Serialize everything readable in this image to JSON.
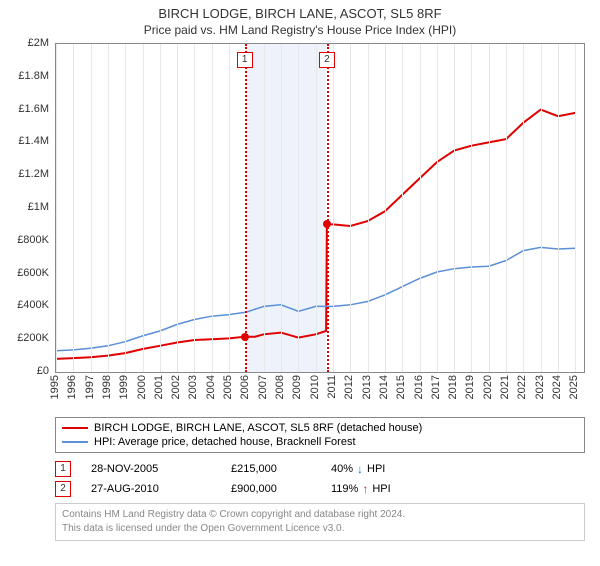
{
  "title": "BIRCH LODGE, BIRCH LANE, ASCOT, SL5 8RF",
  "subtitle": "Price paid vs. HM Land Registry's House Price Index (HPI)",
  "chart": {
    "type": "line",
    "x_start": 1995,
    "x_end": 2025.5,
    "xticks": [
      1995,
      1996,
      1997,
      1998,
      1999,
      2000,
      2001,
      2002,
      2003,
      2004,
      2005,
      2006,
      2007,
      2008,
      2009,
      2010,
      2011,
      2012,
      2013,
      2014,
      2015,
      2016,
      2017,
      2018,
      2019,
      2020,
      2021,
      2022,
      2023,
      2024,
      2025
    ],
    "ylim": [
      0,
      2000000
    ],
    "yticks": [
      0,
      200000,
      400000,
      600000,
      800000,
      1000000,
      1200000,
      1400000,
      1600000,
      1800000,
      2000000
    ],
    "ytick_labels": [
      "£0",
      "£200K",
      "£400K",
      "£600K",
      "£800K",
      "£1M",
      "£1.2M",
      "£1.4M",
      "£1.6M",
      "£1.8M",
      "£2M"
    ],
    "grid_color": "#e8e8e8",
    "border_color": "#888888",
    "background_color": "#ffffff",
    "shade": {
      "start": 2006,
      "end": 2010.6,
      "color": "#eef2fa"
    },
    "series": [
      {
        "name": "property",
        "color": "#e00000",
        "width": 2,
        "points": [
          [
            1995,
            80000
          ],
          [
            1996,
            85000
          ],
          [
            1997,
            90000
          ],
          [
            1998,
            100000
          ],
          [
            1999,
            115000
          ],
          [
            2000,
            140000
          ],
          [
            2001,
            160000
          ],
          [
            2002,
            180000
          ],
          [
            2003,
            195000
          ],
          [
            2004,
            200000
          ],
          [
            2005,
            205000
          ],
          [
            2005.9,
            215000
          ],
          [
            2006.5,
            215000
          ],
          [
            2007,
            230000
          ],
          [
            2008,
            240000
          ],
          [
            2009,
            210000
          ],
          [
            2010,
            230000
          ],
          [
            2010.6,
            250000
          ],
          [
            2010.65,
            900000
          ],
          [
            2011,
            900000
          ],
          [
            2012,
            890000
          ],
          [
            2013,
            920000
          ],
          [
            2014,
            980000
          ],
          [
            2015,
            1080000
          ],
          [
            2016,
            1180000
          ],
          [
            2017,
            1280000
          ],
          [
            2018,
            1350000
          ],
          [
            2019,
            1380000
          ],
          [
            2020,
            1400000
          ],
          [
            2021,
            1420000
          ],
          [
            2022,
            1520000
          ],
          [
            2023,
            1600000
          ],
          [
            2024,
            1560000
          ],
          [
            2025,
            1580000
          ]
        ]
      },
      {
        "name": "hpi",
        "color": "#5b8fd6",
        "width": 1.5,
        "points": [
          [
            1995,
            130000
          ],
          [
            1996,
            135000
          ],
          [
            1997,
            145000
          ],
          [
            1998,
            160000
          ],
          [
            1999,
            185000
          ],
          [
            2000,
            220000
          ],
          [
            2001,
            250000
          ],
          [
            2002,
            290000
          ],
          [
            2003,
            320000
          ],
          [
            2004,
            340000
          ],
          [
            2005,
            350000
          ],
          [
            2006,
            365000
          ],
          [
            2007,
            400000
          ],
          [
            2008,
            410000
          ],
          [
            2009,
            370000
          ],
          [
            2010,
            400000
          ],
          [
            2011,
            400000
          ],
          [
            2012,
            410000
          ],
          [
            2013,
            430000
          ],
          [
            2014,
            470000
          ],
          [
            2015,
            520000
          ],
          [
            2016,
            570000
          ],
          [
            2017,
            610000
          ],
          [
            2018,
            630000
          ],
          [
            2019,
            640000
          ],
          [
            2020,
            645000
          ],
          [
            2021,
            680000
          ],
          [
            2022,
            740000
          ],
          [
            2023,
            760000
          ],
          [
            2024,
            750000
          ],
          [
            2025,
            755000
          ]
        ]
      }
    ],
    "sale_markers": [
      {
        "num": "1",
        "x": 2005.9,
        "y": 215000,
        "color": "#e00000"
      },
      {
        "num": "2",
        "x": 2010.65,
        "y": 900000,
        "color": "#e00000"
      }
    ]
  },
  "legend": {
    "items": [
      {
        "color": "#e00000",
        "label": "BIRCH LODGE, BIRCH LANE, ASCOT, SL5 8RF (detached house)"
      },
      {
        "color": "#5b8fd6",
        "label": "HPI: Average price, detached house, Bracknell Forest"
      }
    ]
  },
  "sales": [
    {
      "num": "1",
      "date": "28-NOV-2005",
      "price": "£215,000",
      "delta": "40%",
      "dir": "down",
      "arrow_color": "#1a73e8",
      "suffix": "HPI"
    },
    {
      "num": "2",
      "date": "27-AUG-2010",
      "price": "£900,000",
      "delta": "119%",
      "dir": "up",
      "arrow_color": "#d62b2b",
      "suffix": "HPI"
    }
  ],
  "footer": {
    "line1": "Contains HM Land Registry data © Crown copyright and database right 2024.",
    "line2": "This data is licensed under the Open Government Licence v3.0."
  }
}
